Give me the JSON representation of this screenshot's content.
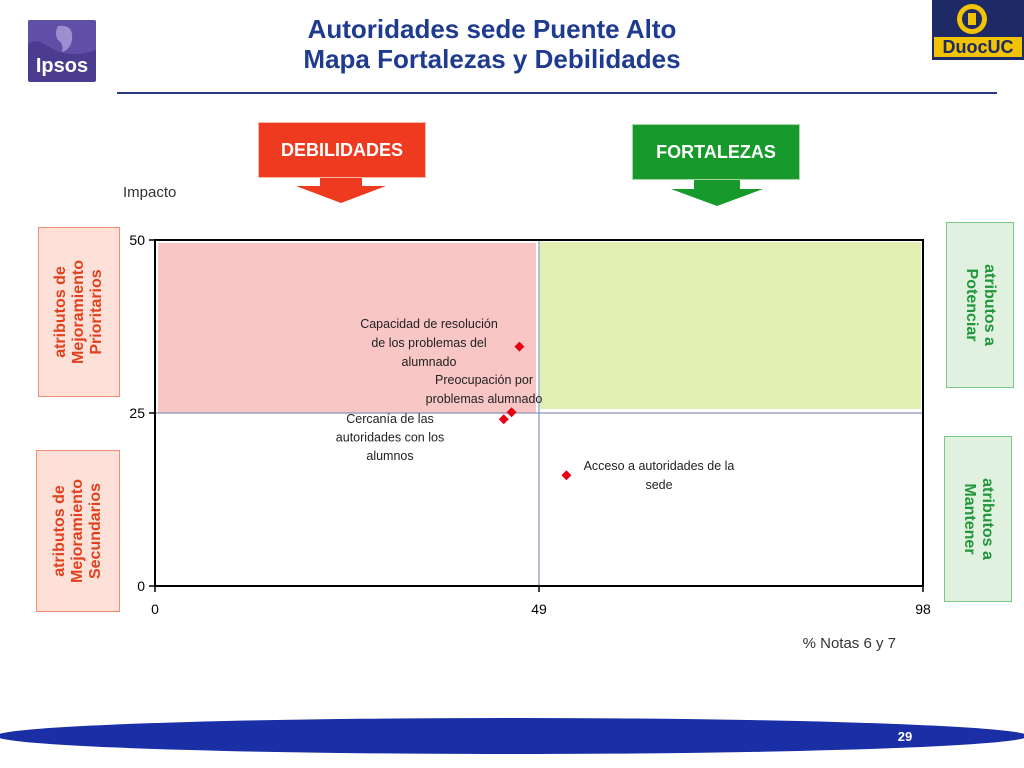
{
  "header": {
    "title_line1": "Autoridades sede Puente Alto",
    "title_line2": "Mapa Fortalezas y Debilidades",
    "ipsos_logo_text": "Ipsos",
    "duoc_logo_text": "DuocUC"
  },
  "callouts": {
    "debilidades": "DEBILIDADES",
    "fortalezas": "FORTALEZAS"
  },
  "side_labels": {
    "prioritarios": [
      "atributos de",
      "Mejoramiento",
      "Prioritarios"
    ],
    "secundarios": [
      "atributos de",
      "Mejoramiento",
      "Secundarios"
    ],
    "potenciar": [
      "atributos a",
      "Potenciar"
    ],
    "mantener": [
      "atributos a",
      "Mantener"
    ]
  },
  "colors": {
    "title": "#1f3b8f",
    "debilidades": "#ee3a1f",
    "fortalezas": "#179a2b",
    "quadrant_weak": "#f9c6c6",
    "quadrant_strong": "#e2efb3",
    "marker": "#e60012",
    "footer": "#1a2fa6"
  },
  "footer": {
    "page_number": "29"
  },
  "chart_data": {
    "type": "scatter",
    "ylabel": "Impacto",
    "xlabel": "% Notas 6 y 7",
    "xlim": [
      0,
      98
    ],
    "ylim": [
      0,
      50
    ],
    "x_ticks": [
      "0",
      "49",
      "98"
    ],
    "y_ticks": [
      "0",
      "25",
      "50"
    ],
    "x_divider": 49,
    "y_divider": 25,
    "grid": false,
    "points": [
      {
        "label_lines": [
          "Capacidad de resolución",
          "de los problemas del",
          "alumnado"
        ],
        "x": 46.5,
        "y": 34.6
      },
      {
        "label_lines": [
          "Preocupación por",
          "problemas alumnado"
        ],
        "x": 45.5,
        "y": 25.1
      },
      {
        "label_lines": [
          "Cercanía de las",
          "autoridades con los",
          "alumnos"
        ],
        "x": 44.5,
        "y": 24.1
      },
      {
        "label_lines": [
          "Acceso a autoridades de la",
          "sede"
        ],
        "x": 52.5,
        "y": 16.0
      }
    ]
  }
}
